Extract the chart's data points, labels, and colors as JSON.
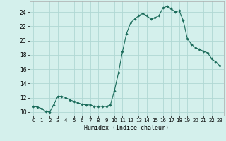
{
  "x": [
    0,
    0.5,
    1,
    1.5,
    2,
    2.5,
    3,
    3.5,
    4,
    4.5,
    5,
    5.5,
    6,
    6.5,
    7,
    7.5,
    8,
    8.5,
    9,
    9.5,
    10,
    10.5,
    11,
    11.5,
    12,
    12.5,
    13,
    13.5,
    14,
    14.5,
    15,
    15.5,
    16,
    16.5,
    17,
    17.5,
    18,
    18.5,
    19,
    19.5,
    20,
    20.5,
    21,
    21.5,
    22,
    22.5,
    23
  ],
  "y": [
    10.8,
    10.7,
    10.5,
    10.1,
    10.0,
    11.0,
    12.2,
    12.2,
    12.0,
    11.7,
    11.5,
    11.3,
    11.1,
    11.0,
    11.0,
    10.8,
    10.8,
    10.8,
    10.8,
    11.0,
    13.0,
    15.5,
    18.5,
    21.0,
    22.5,
    23.0,
    23.5,
    23.8,
    23.5,
    23.0,
    23.2,
    23.5,
    24.6,
    24.8,
    24.5,
    24.0,
    24.2,
    22.8,
    20.3,
    19.5,
    19.0,
    18.8,
    18.5,
    18.3,
    17.5,
    17.0,
    16.5
  ],
  "line_color": "#1a6b5a",
  "marker_color": "#1a6b5a",
  "bg_color": "#d4f0ec",
  "grid_color": "#b0d8d4",
  "xlabel": "Humidex (Indice chaleur)",
  "xticks": [
    0,
    1,
    2,
    3,
    4,
    5,
    6,
    7,
    8,
    9,
    10,
    11,
    12,
    13,
    14,
    15,
    16,
    17,
    18,
    19,
    20,
    21,
    22,
    23
  ],
  "yticks": [
    10,
    12,
    14,
    16,
    18,
    20,
    22,
    24
  ],
  "ylim": [
    9.5,
    25.5
  ],
  "xlim": [
    -0.5,
    23.5
  ]
}
